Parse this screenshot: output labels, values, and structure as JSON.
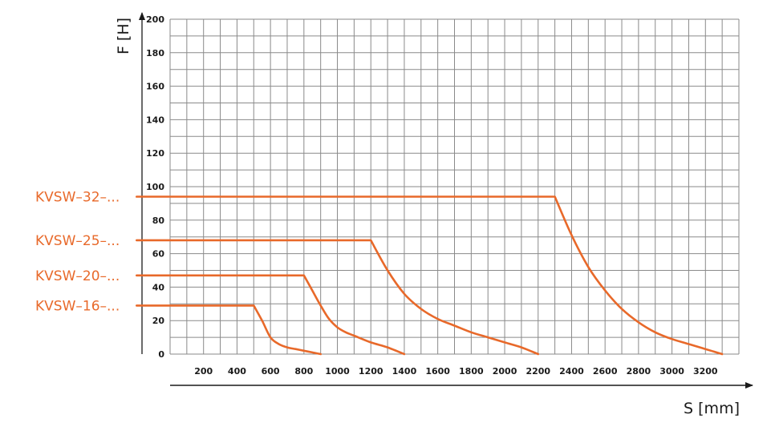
{
  "chart_data": {
    "type": "line",
    "xlabel": "S [mm]",
    "ylabel": "F [H]",
    "xlim": [
      0,
      3400
    ],
    "ylim": [
      0,
      200
    ],
    "x_ticks": [
      200,
      400,
      600,
      800,
      1000,
      1200,
      1400,
      1600,
      1800,
      2000,
      2200,
      2400,
      2600,
      2800,
      3000,
      3200
    ],
    "y_ticks": [
      0,
      20,
      40,
      60,
      80,
      100,
      120,
      140,
      160,
      180,
      200
    ],
    "grid": true,
    "line_color": "#e8692a",
    "series": [
      {
        "name": "KVSW–32–...",
        "x": [
          -200,
          2300,
          2400,
          2500,
          2600,
          2700,
          2800,
          2900,
          3000,
          3100,
          3200,
          3300
        ],
        "y": [
          94,
          94,
          71,
          52,
          38,
          27,
          19,
          13,
          9,
          6,
          3,
          0
        ]
      },
      {
        "name": "KVSW–25–...",
        "x": [
          -200,
          1200,
          1300,
          1400,
          1500,
          1600,
          1700,
          1800,
          1900,
          2000,
          2100,
          2200
        ],
        "y": [
          68,
          68,
          50,
          36,
          27,
          21,
          17,
          13,
          10,
          7,
          4,
          0
        ]
      },
      {
        "name": "KVSW–20–...",
        "x": [
          -200,
          800,
          850,
          900,
          950,
          1000,
          1050,
          1100,
          1200,
          1300,
          1400
        ],
        "y": [
          47,
          47,
          38,
          29,
          21,
          16,
          13,
          11,
          7,
          4,
          0
        ]
      },
      {
        "name": "KVSW–16–...",
        "x": [
          -200,
          500,
          550,
          600,
          650,
          700,
          750,
          800,
          850,
          900
        ],
        "y": [
          29,
          29,
          20,
          10,
          6,
          4,
          3,
          2,
          1,
          0
        ]
      }
    ]
  }
}
